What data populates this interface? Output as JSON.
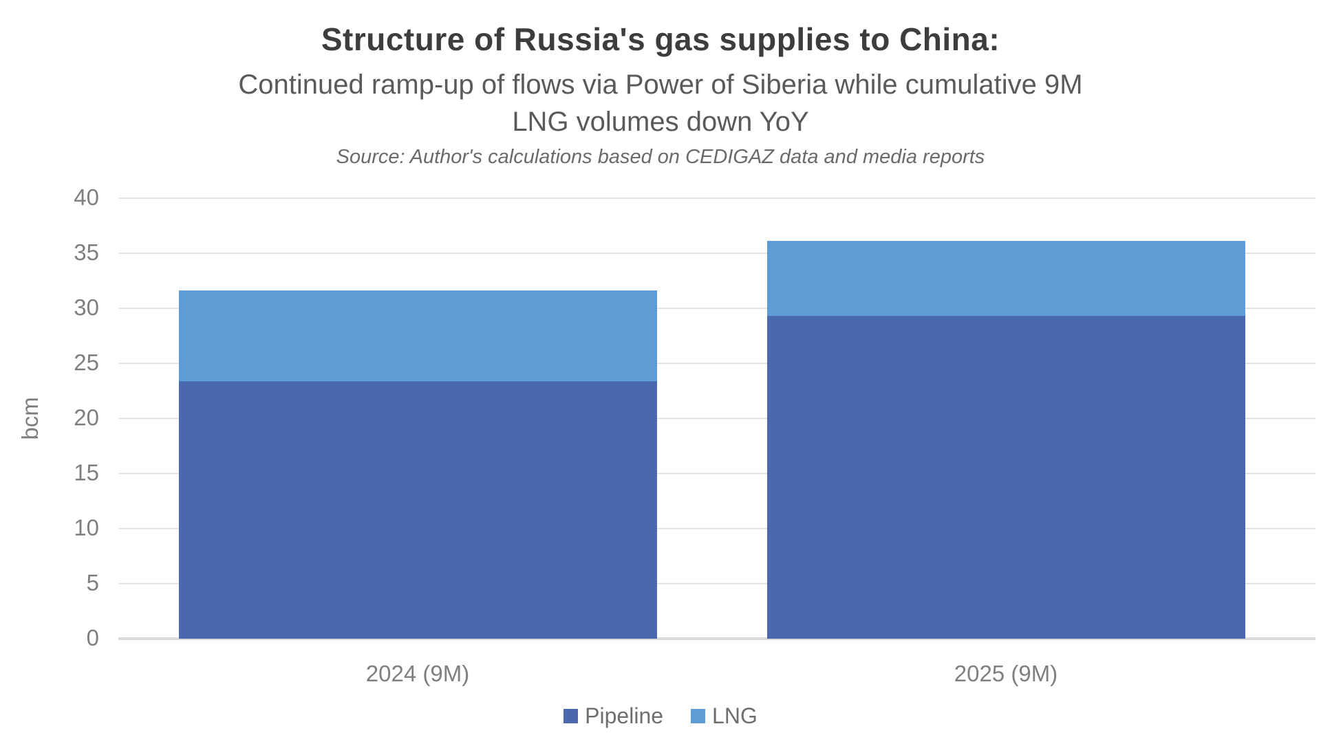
{
  "header": {
    "title": "Structure of Russia's gas supplies to China:",
    "subtitle": "Continued ramp-up of flows via Power of Siberia while cumulative 9M\nLNG volumes down YoY",
    "source": "Source: Author's calculations based on CEDIGAZ data and media reports"
  },
  "chart_data": {
    "type": "bar",
    "stacked": true,
    "title": "Structure of Russia's gas supplies to China:",
    "subtitle": "Continued ramp-up of flows via Power of Siberia while cumulative 9M LNG volumes down YoY",
    "source": "Source: Author's calculations based on CEDIGAZ data and media reports",
    "categories": [
      "2024 (9M)",
      "2025 (9M)"
    ],
    "series": [
      {
        "name": "Pipeline",
        "color": "#4a68ae",
        "values": [
          23.4,
          29.3
        ]
      },
      {
        "name": "LNG",
        "color": "#5f9cd4",
        "values": [
          8.2,
          6.8
        ]
      }
    ],
    "totals": [
      31.6,
      36.1
    ],
    "xlabel": "",
    "ylabel": "bcm",
    "ylim": [
      0,
      40
    ],
    "yticks": [
      0,
      5,
      10,
      15,
      20,
      25,
      30,
      35,
      40
    ],
    "grid": true,
    "legend_position": "bottom"
  },
  "colors": {
    "background": "#ffffff",
    "title": "#3d3d3d",
    "subtitle": "#5a5a5a",
    "source": "#6a6a6a",
    "axis_text": "#7f7f7f",
    "gridline": "#e2e2e2",
    "baseline": "#d9d9d9",
    "pipeline": "#4a68ae",
    "lng": "#5f9cd4"
  }
}
